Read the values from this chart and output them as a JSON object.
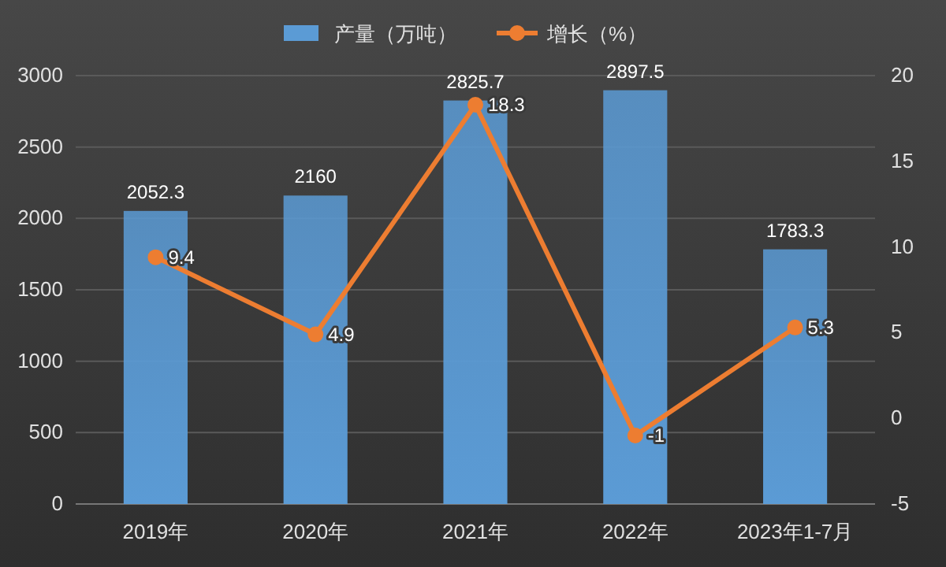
{
  "chart_data": {
    "type": "bar",
    "categories": [
      "2019年",
      "2020年",
      "2021年",
      "2022年",
      "2023年1-7月"
    ],
    "series": [
      {
        "name": "产量（万吨）",
        "color": "#5b9bd5",
        "values": [
          2052.3,
          2160,
          2825.7,
          2897.5,
          1783.3
        ]
      },
      {
        "name": "增长（%）",
        "type": "line",
        "axis": "y2",
        "color": "#ed7d31",
        "values": [
          9.4,
          4.9,
          18.3,
          -1,
          5.3
        ]
      }
    ],
    "ylim": [
      0,
      3000
    ],
    "yticks": [
      0,
      500,
      1000,
      1500,
      2000,
      2500,
      3000
    ],
    "y2lim": [
      -5,
      20
    ],
    "y2ticks": [
      -5,
      0,
      5,
      10,
      15,
      20
    ],
    "grid": "y",
    "legend": "top",
    "marker": "circle",
    "line_style": "solid",
    "data_labels": true
  }
}
